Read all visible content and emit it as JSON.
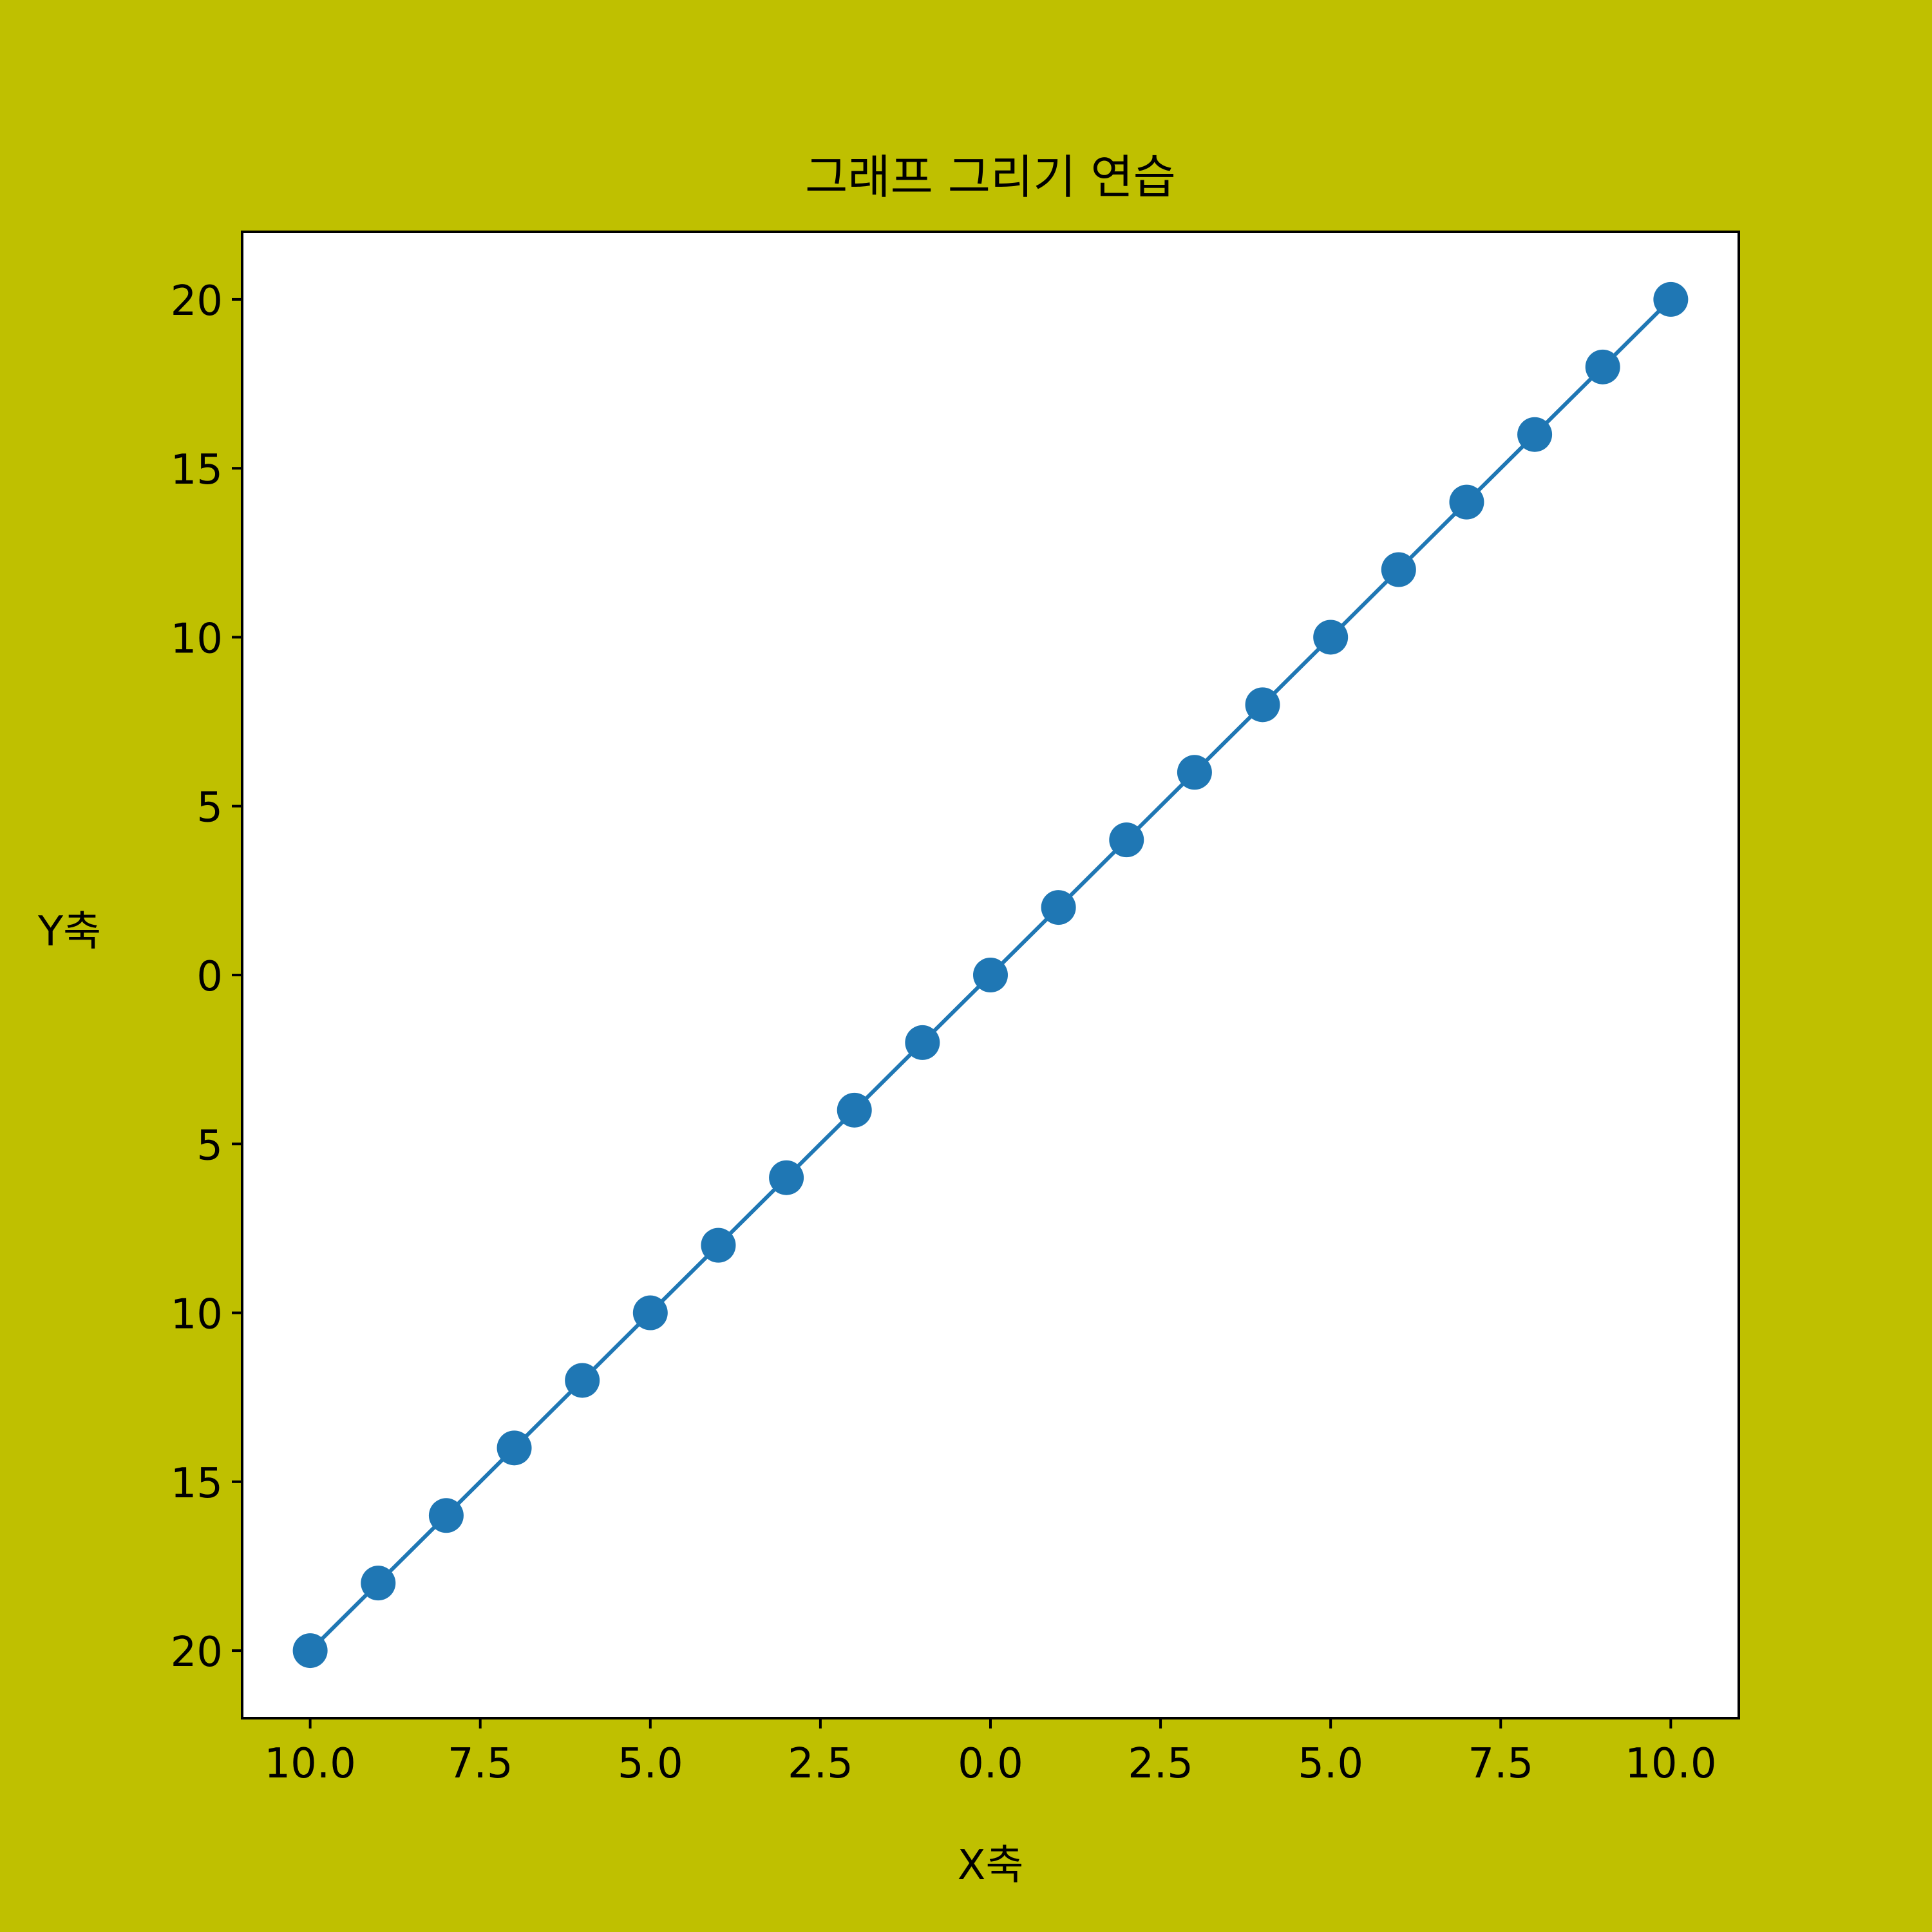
{
  "colors": {
    "figure_background": "#bfc000",
    "axes_background": "#ffffff",
    "line": "#1f77b4",
    "marker": "#1f77b4",
    "text": "#000000"
  },
  "chart_data": {
    "type": "line",
    "title": "그래프 그리기 연습",
    "xlabel": "X축",
    "ylabel": "Y축",
    "xlim": [
      -11,
      11
    ],
    "ylim": [
      -22,
      22
    ],
    "grid": false,
    "legend": "none",
    "marker": "circle",
    "x_ticks": [
      -10,
      -7.5,
      -5,
      -2.5,
      0,
      2.5,
      5,
      7.5,
      10
    ],
    "x_tick_labels": [
      "10.0",
      "7.5",
      "5.0",
      "2.5",
      "0.0",
      "2.5",
      "5.0",
      "7.5",
      "10.0"
    ],
    "y_ticks": [
      -20,
      -15,
      -10,
      -5,
      0,
      5,
      10,
      15,
      20
    ],
    "y_tick_labels": [
      "20",
      "15",
      "10",
      "5",
      "0",
      "5",
      "10",
      "15",
      "20"
    ],
    "series": [
      {
        "x": [
          -10,
          -9,
          -8,
          -7,
          -6,
          -5,
          -4,
          -3,
          -2,
          -1,
          0,
          1,
          2,
          3,
          4,
          5,
          6,
          7,
          8,
          9,
          10
        ],
        "values": [
          -20,
          -18,
          -16,
          -14,
          -12,
          -10,
          -8,
          -6,
          -4,
          -2,
          0,
          2,
          4,
          6,
          8,
          10,
          12,
          14,
          16,
          18,
          20
        ]
      }
    ]
  }
}
